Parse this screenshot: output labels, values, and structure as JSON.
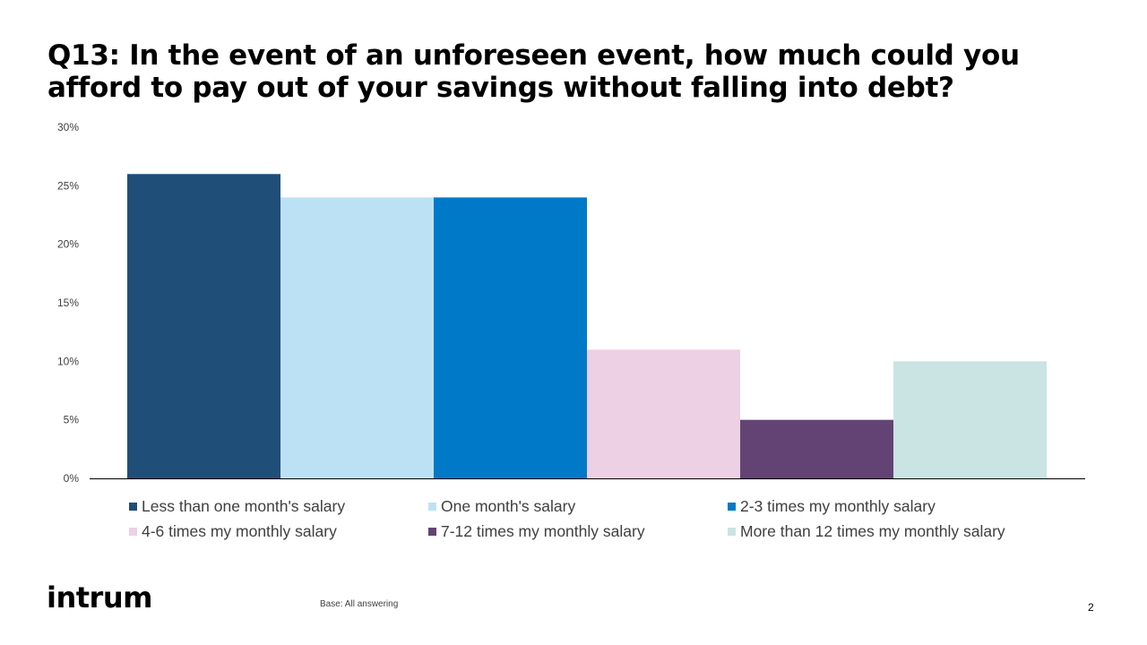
{
  "slide": {
    "title": "Q13: In the event of an unforeseen event, how much could you afford to pay out of your savings without falling into debt?",
    "logo_text": "intrum",
    "footnote": "Base: All answering",
    "page_number": "2"
  },
  "chart_data": {
    "type": "bar",
    "title": "",
    "xlabel": "",
    "ylabel": "",
    "ylim": [
      0,
      30
    ],
    "yticks": [
      "0%",
      "5%",
      "10%",
      "15%",
      "20%",
      "25%",
      "30%"
    ],
    "ytick_values": [
      0,
      5,
      10,
      15,
      20,
      25,
      30
    ],
    "grid": false,
    "legend_position": "bottom",
    "series": [
      {
        "name": "Less than one month's salary",
        "values": [
          26
        ],
        "color": "#1F4E79"
      },
      {
        "name": "One month's salary",
        "values": [
          24
        ],
        "color": "#BDE1F4"
      },
      {
        "name": "2-3 times my monthly salary",
        "values": [
          24
        ],
        "color": "#0079C8"
      },
      {
        "name": "4-6 times my monthly salary",
        "values": [
          11
        ],
        "color": "#EDD0E3"
      },
      {
        "name": "7-12 times my monthly salary",
        "values": [
          5
        ],
        "color": "#634374"
      },
      {
        "name": "More than 12 times my monthly salary",
        "values": [
          10
        ],
        "color": "#C9E4E3"
      }
    ]
  }
}
